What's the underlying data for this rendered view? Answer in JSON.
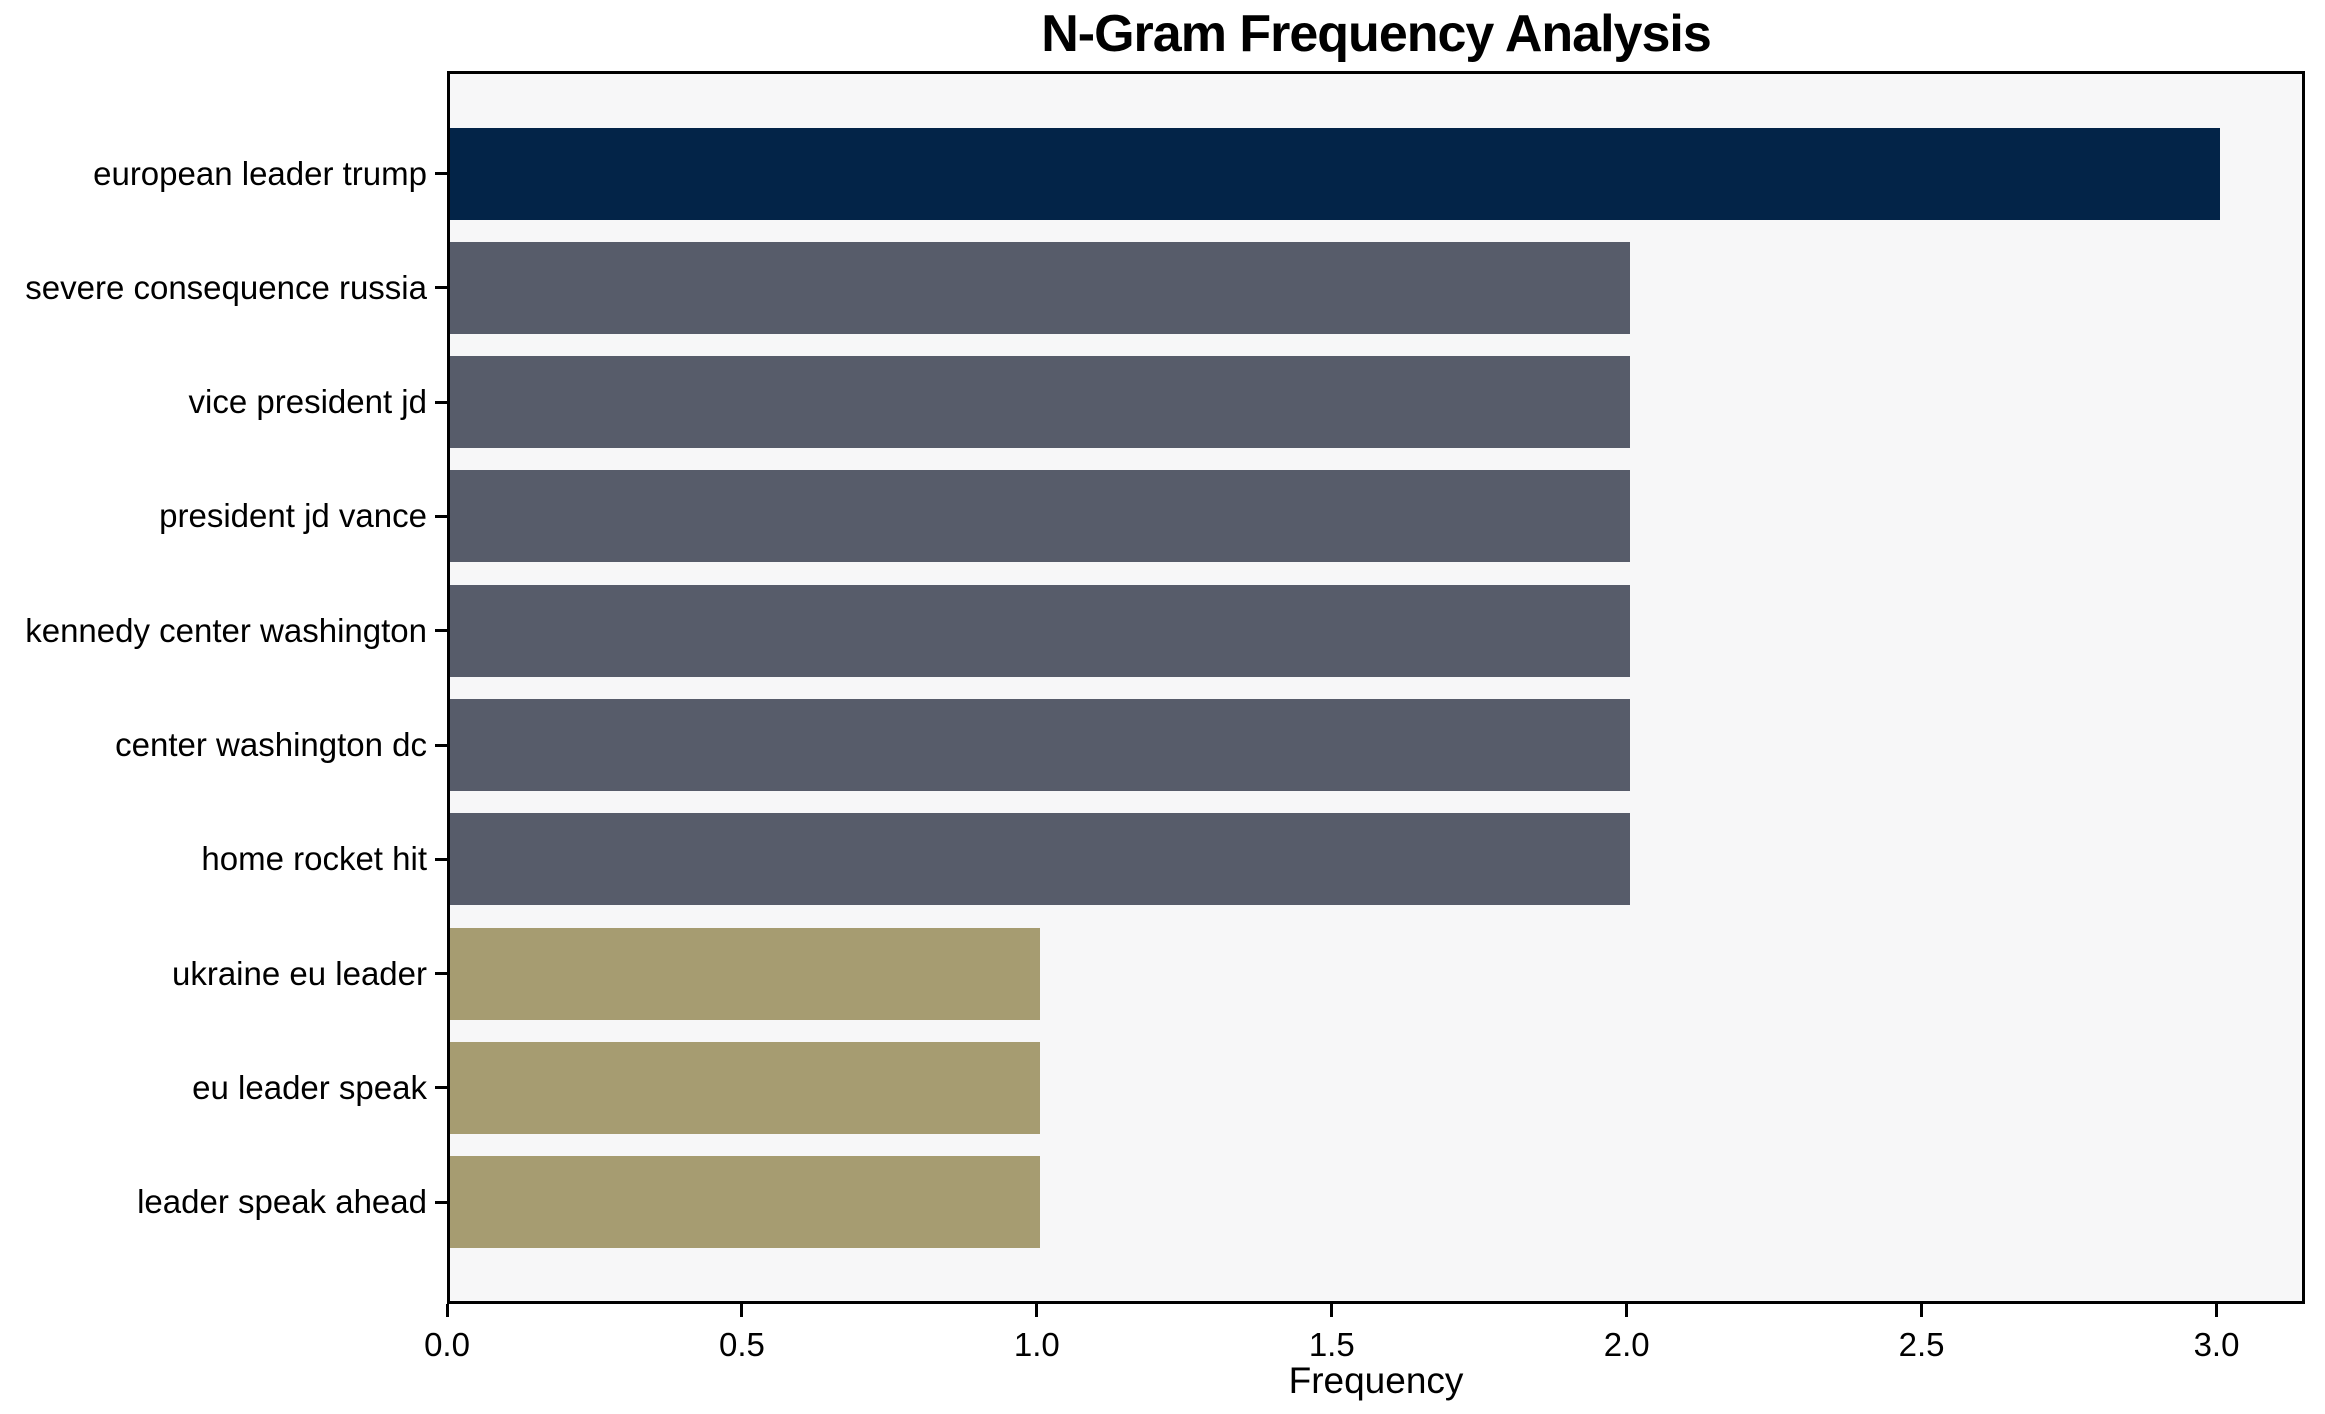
{
  "chart_data": {
    "type": "bar",
    "orientation": "horizontal",
    "title": "N-Gram Frequency Analysis",
    "xlabel": "Frequency",
    "ylabel": "",
    "categories": [
      "european leader trump",
      "severe consequence russia",
      "vice president jd",
      "president jd vance",
      "kennedy center washington",
      "center washington dc",
      "home rocket hit",
      "ukraine eu leader",
      "eu leader speak",
      "leader speak ahead"
    ],
    "values": [
      3,
      2,
      2,
      2,
      2,
      2,
      2,
      1,
      1,
      1
    ],
    "bar_colors": [
      "#032448",
      "#575c6a",
      "#575c6a",
      "#575c6a",
      "#575c6a",
      "#575c6a",
      "#575c6a",
      "#a69c71",
      "#a69c71",
      "#a69c71"
    ],
    "x_tick_labels": [
      "0.0",
      "0.5",
      "1.0",
      "1.5",
      "2.0",
      "2.5",
      "3.0"
    ],
    "x_tick_values": [
      0,
      0.5,
      1.0,
      1.5,
      2.0,
      2.5,
      3.0
    ],
    "xlim": [
      0,
      3.15
    ],
    "grid": false,
    "legend": "none",
    "plot_background": "#f7f7f8",
    "figure_background": "#ffffff",
    "spine_color": "#000000",
    "text_color": "#000000"
  }
}
